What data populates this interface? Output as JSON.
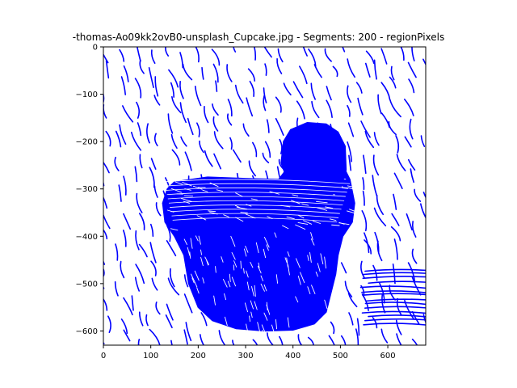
{
  "chart_data": {
    "type": "line",
    "title": "-thomas-Ao09kk2ovB0-unsplash_Cupcake.jpg - Segments: 200 - regionPixels",
    "xlabel": "",
    "ylabel": "",
    "xlim": [
      0,
      680
    ],
    "ylim": [
      -630,
      0
    ],
    "x_ticks": [
      0,
      100,
      200,
      300,
      400,
      500,
      600
    ],
    "y_ticks": [
      0,
      -100,
      -200,
      -300,
      -400,
      -500,
      -600
    ],
    "x_tick_labels": [
      "0",
      "100",
      "200",
      "300",
      "400",
      "500",
      "600"
    ],
    "y_tick_labels": [
      "0",
      "−100",
      "−200",
      "−300",
      "−400",
      "−500",
      "−600"
    ],
    "grid": false,
    "legend": "none",
    "series_color": "#0000ff",
    "subject_outline": [
      [
        130,
        -370
      ],
      [
        125,
        -330
      ],
      [
        135,
        -300
      ],
      [
        150,
        -285
      ],
      [
        220,
        -275
      ],
      [
        300,
        -278
      ],
      [
        370,
        -280
      ],
      [
        385,
        -260
      ],
      [
        395,
        -235
      ],
      [
        400,
        -200
      ],
      [
        415,
        -175
      ],
      [
        445,
        -165
      ],
      [
        470,
        -168
      ],
      [
        490,
        -190
      ],
      [
        500,
        -215
      ],
      [
        505,
        -250
      ],
      [
        520,
        -280
      ],
      [
        530,
        -330
      ],
      [
        525,
        -370
      ],
      [
        505,
        -400
      ],
      [
        495,
        -440
      ],
      [
        490,
        -480
      ],
      [
        480,
        -520
      ],
      [
        470,
        -560
      ],
      [
        445,
        -585
      ],
      [
        400,
        -598
      ],
      [
        340,
        -600
      ],
      [
        280,
        -595
      ],
      [
        230,
        -578
      ],
      [
        200,
        -550
      ],
      [
        180,
        -500
      ],
      [
        170,
        -440
      ],
      [
        150,
        -400
      ]
    ],
    "dome_outline": [
      [
        375,
        -245
      ],
      [
        380,
        -200
      ],
      [
        395,
        -175
      ],
      [
        430,
        -160
      ],
      [
        470,
        -163
      ],
      [
        495,
        -180
      ],
      [
        510,
        -210
      ],
      [
        512,
        -260
      ],
      [
        500,
        -300
      ],
      [
        470,
        -320
      ],
      [
        430,
        -325
      ],
      [
        395,
        -300
      ]
    ]
  }
}
